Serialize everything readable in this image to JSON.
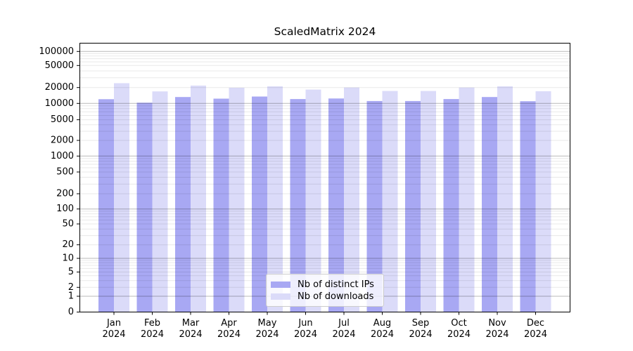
{
  "title": "ScaledMatrix 2024",
  "legend": {
    "items": [
      {
        "label": "Nb of distinct IPs",
        "color": "#a8a8f3"
      },
      {
        "label": "Nb of downloads",
        "color": "#dbdbf9"
      }
    ]
  },
  "chart_data": {
    "type": "bar",
    "title": "ScaledMatrix 2024",
    "categories": [
      "Jan 2024",
      "Feb 2024",
      "Mar 2024",
      "Apr 2024",
      "May 2024",
      "Jun 2024",
      "Jul 2024",
      "Aug 2024",
      "Sep 2024",
      "Oct 2024",
      "Nov 2024",
      "Dec 2024"
    ],
    "series": [
      {
        "name": "Nb of distinct IPs",
        "color": "#a8a8f3",
        "values": [
          12000,
          10300,
          13200,
          12300,
          13500,
          12100,
          12400,
          11100,
          11100,
          12100,
          13200,
          11000
        ]
      },
      {
        "name": "Nb of downloads",
        "color": "#dbdbf9",
        "values": [
          24000,
          16900,
          21700,
          19800,
          21000,
          18300,
          20000,
          17200,
          17200,
          20000,
          21000,
          17000
        ]
      }
    ],
    "xlabel": "",
    "ylabel": "",
    "yscale": "symlog",
    "yticks": [
      0,
      1,
      2,
      5,
      10,
      20,
      50,
      100,
      200,
      500,
      1000,
      2000,
      5000,
      10000,
      20000,
      50000,
      100000
    ],
    "ylim": [
      0,
      140000
    ],
    "grid": {
      "major": "horizontal gray lines at powers of 10, drawn over bars",
      "minor": "faint horizontal lines at 2-9 multiples of each decade"
    },
    "legend_position": "lower center"
  }
}
